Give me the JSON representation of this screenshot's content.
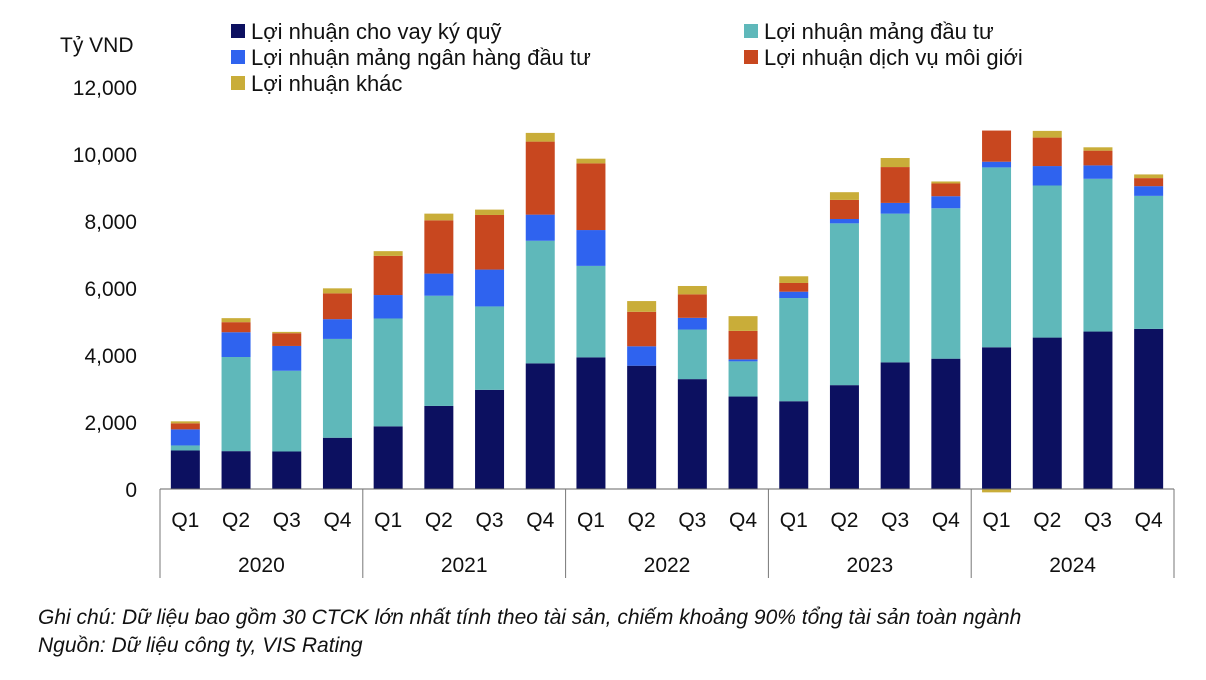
{
  "chart_data": {
    "type": "bar",
    "stacked": true,
    "unit_label": "Tỷ VND",
    "ylim": [
      0,
      12000
    ],
    "yticks": [
      0,
      2000,
      4000,
      6000,
      8000,
      10000,
      12000
    ],
    "ytick_labels": [
      "0",
      "2,000",
      "4,000",
      "6,000",
      "8,000",
      "10,000",
      "12,000"
    ],
    "grid": false,
    "legend_position": "top",
    "categories": [
      "Q1",
      "Q2",
      "Q3",
      "Q4",
      "Q1",
      "Q2",
      "Q3",
      "Q4",
      "Q1",
      "Q2",
      "Q3",
      "Q4",
      "Q1",
      "Q2",
      "Q3",
      "Q4",
      "Q1",
      "Q2",
      "Q3",
      "Q4"
    ],
    "groups": [
      {
        "label": "2020",
        "count": 4
      },
      {
        "label": "2021",
        "count": 4
      },
      {
        "label": "2022",
        "count": 4
      },
      {
        "label": "2023",
        "count": 4
      },
      {
        "label": "2024",
        "count": 4
      }
    ],
    "series": [
      {
        "name": "Lợi nhuận cho vay ký quỹ",
        "color": "#0c1060",
        "values": [
          1150,
          1130,
          1120,
          1530,
          1870,
          2480,
          2960,
          3750,
          3930,
          3680,
          3280,
          2760,
          2620,
          3100,
          3780,
          3890,
          4230,
          4520,
          4700,
          4780
        ]
      },
      {
        "name": "Lợi nhuận mảng đầu tư",
        "color": "#5fb8ba",
        "values": [
          150,
          2810,
          2410,
          2950,
          3220,
          3290,
          2490,
          3660,
          2730,
          0,
          1480,
          1050,
          3080,
          4830,
          4440,
          4490,
          5370,
          4540,
          4560,
          3970
        ]
      },
      {
        "name": "Lợi nhuận mảng ngân hàng đầu tư",
        "color": "#2f63ef",
        "values": [
          480,
          740,
          740,
          590,
          700,
          660,
          1100,
          780,
          1070,
          580,
          350,
          60,
          190,
          130,
          320,
          360,
          170,
          580,
          400,
          290
        ]
      },
      {
        "name": "Lợi nhuận dịch vụ môi giới",
        "color": "#c8471f",
        "values": [
          180,
          300,
          380,
          770,
          1170,
          1590,
          1630,
          2180,
          1990,
          1030,
          700,
          850,
          260,
          570,
          1070,
          380,
          930,
          850,
          440,
          240
        ]
      },
      {
        "name": "Lợi nhuận khác",
        "color": "#c9ad39",
        "values": [
          60,
          120,
          40,
          150,
          140,
          200,
          160,
          260,
          140,
          320,
          250,
          440,
          200,
          230,
          270,
          60,
          -100,
          200,
          100,
          110
        ]
      }
    ]
  },
  "notes": {
    "line1": "Ghi chú: Dữ liệu bao gồm 30 CTCK lớn nhất tính theo tài sản, chiếm khoảng 90% tổng tài sản toàn ngành",
    "line2": "Nguồn: Dữ liệu công ty, VIS Rating"
  }
}
